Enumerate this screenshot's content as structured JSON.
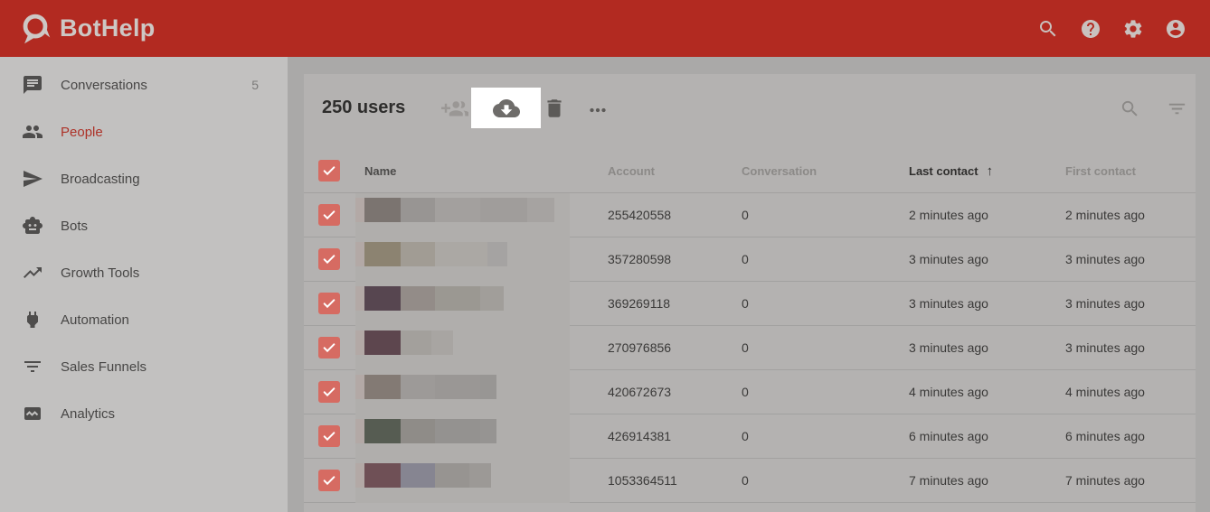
{
  "app": {
    "name": "BotHelp"
  },
  "header": {
    "icons": [
      "search-icon",
      "help-icon",
      "settings-icon",
      "account-icon"
    ]
  },
  "sidebar": {
    "items": [
      {
        "label": "Conversations",
        "badge": "5",
        "icon": "conversations-icon",
        "active": false
      },
      {
        "label": "People",
        "icon": "people-icon",
        "active": true
      },
      {
        "label": "Broadcasting",
        "icon": "broadcasting-icon",
        "active": false
      },
      {
        "label": "Bots",
        "icon": "bots-icon",
        "active": false
      },
      {
        "label": "Growth Tools",
        "icon": "growth-tools-icon",
        "active": false
      },
      {
        "label": "Automation",
        "icon": "automation-icon",
        "active": false
      },
      {
        "label": "Sales Funnels",
        "icon": "sales-funnels-icon",
        "active": false
      },
      {
        "label": "Analytics",
        "icon": "analytics-icon",
        "active": false
      }
    ]
  },
  "toolbar": {
    "title": "250 users",
    "actions": [
      "add-users",
      "export-download",
      "delete",
      "more-options"
    ],
    "highlighted_action": "export-download",
    "right_actions": [
      "search",
      "filter"
    ]
  },
  "table": {
    "columns": [
      "Name",
      "Account",
      "Conversation",
      "Last contact",
      "First contact"
    ],
    "sort": {
      "column": "Last contact",
      "direction": "asc",
      "arrow": "↑"
    },
    "all_selected": true,
    "rows": [
      {
        "selected": true,
        "account": "255420558",
        "conversation": "0",
        "last_contact": "2 minutes ago",
        "first_contact": "2 minutes ago"
      },
      {
        "selected": true,
        "account": "357280598",
        "conversation": "0",
        "last_contact": "3 minutes ago",
        "first_contact": "3 minutes ago"
      },
      {
        "selected": true,
        "account": "369269118",
        "conversation": "0",
        "last_contact": "3 minutes ago",
        "first_contact": "3 minutes ago"
      },
      {
        "selected": true,
        "account": "270976856",
        "conversation": "0",
        "last_contact": "3 minutes ago",
        "first_contact": "3 minutes ago"
      },
      {
        "selected": true,
        "account": "420672673",
        "conversation": "0",
        "last_contact": "4 minutes ago",
        "first_contact": "4 minutes ago"
      },
      {
        "selected": true,
        "account": "426914381",
        "conversation": "0",
        "last_contact": "6 minutes ago",
        "first_contact": "6 minutes ago"
      },
      {
        "selected": true,
        "account": "1053364511",
        "conversation": "0",
        "last_contact": "7 minutes ago",
        "first_contact": "7 minutes ago"
      }
    ]
  },
  "colors": {
    "header_bg": "#b22a21",
    "accent_red": "#ad3228",
    "checkbox_red": "#d66b62",
    "card_bg": "#b4b2b1",
    "sidebar_bg": "#c2c1c0",
    "highlight_box": "#ffffff",
    "blur_bg": "#b0aeac"
  },
  "mosaic": {
    "rows": [
      [
        [
          "#b3a9a6",
          10
        ],
        [
          "#7b7470",
          40
        ],
        [
          "#989593",
          38
        ],
        [
          "#a3a09e",
          50
        ],
        [
          "#a09d9b",
          52
        ],
        [
          "#a6a3a1",
          30
        ]
      ],
      [
        [
          "#b3a9a6",
          10
        ],
        [
          "#8c8371",
          40
        ],
        [
          "#a19c94",
          38
        ],
        [
          "#aba8a4",
          58
        ],
        [
          "#a5a3a2",
          22
        ]
      ],
      [
        [
          "#b3a9a6",
          10
        ],
        [
          "#574650",
          40
        ],
        [
          "#938c88",
          38
        ],
        [
          "#9b9892",
          50
        ],
        [
          "#a19e9a",
          26
        ]
      ],
      [
        [
          "#b3a9a6",
          10
        ],
        [
          "#5d464e",
          40
        ],
        [
          "#a3a09c",
          34
        ],
        [
          "#a8a5a2",
          24
        ]
      ],
      [
        [
          "#b3a9a6",
          10
        ],
        [
          "#837a74",
          40
        ],
        [
          "#9d9a98",
          38
        ],
        [
          "#9a9795",
          50
        ],
        [
          "#989694",
          18
        ]
      ],
      [
        [
          "#b3a9a6",
          10
        ],
        [
          "#565c52",
          40
        ],
        [
          "#8f8c88",
          38
        ],
        [
          "#949290",
          50
        ],
        [
          "#969492",
          18
        ]
      ],
      [
        [
          "#b3a9a6",
          10
        ],
        [
          "#6f5056",
          40
        ],
        [
          "#868591",
          38
        ],
        [
          "#979491",
          38
        ],
        [
          "#9c9996",
          24
        ]
      ]
    ]
  }
}
